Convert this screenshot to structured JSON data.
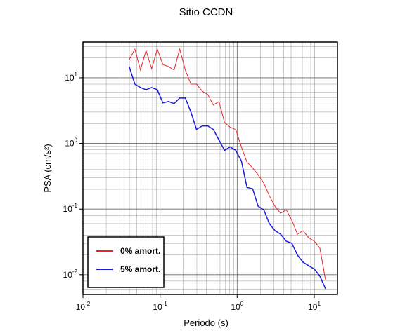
{
  "chart_data": {
    "type": "line",
    "title": "Sitio CCDN",
    "xlabel": "Periodo (s)",
    "ylabel": "PSA (cm/s²)",
    "log_x": true,
    "log_y": true,
    "grid": true,
    "legend": "lower left",
    "x": [
      0.0398,
      0.0471,
      0.0557,
      0.0658,
      0.0778,
      0.092,
      0.1088,
      0.1285,
      0.152,
      0.1797,
      0.2125,
      0.2512,
      0.297,
      0.3511,
      0.4151,
      0.4908,
      0.5802,
      0.686,
      0.811,
      0.959,
      1.134,
      1.34,
      1.585,
      1.874,
      2.215,
      2.619,
      3.097,
      3.661,
      4.329,
      5.118,
      6.051,
      7.154,
      8.458,
      10.0,
      11.82,
      13.98
    ],
    "series": [
      {
        "name": "0% amort.",
        "color": "#e8262a",
        "width": 1,
        "values": [
          18.9,
          27.3,
          13.1,
          26.0,
          13.7,
          27.3,
          15.9,
          14.8,
          13.1,
          27.3,
          13.1,
          8.0,
          8.0,
          6.28,
          5.56,
          3.85,
          4.35,
          2.08,
          1.76,
          1.63,
          0.885,
          0.517,
          0.425,
          0.332,
          0.248,
          0.159,
          0.11,
          0.0863,
          0.0975,
          0.0676,
          0.0414,
          0.0468,
          0.0366,
          0.0324,
          0.0254,
          0.00843
        ]
      },
      {
        "name": "5% amort.",
        "color": "#1a1ae0",
        "width": 1.5,
        "values": [
          14.8,
          8.0,
          7.1,
          6.59,
          7.1,
          6.59,
          4.14,
          4.35,
          4.04,
          4.91,
          4.91,
          3.01,
          1.63,
          1.85,
          1.85,
          1.63,
          1.13,
          0.783,
          0.885,
          0.783,
          0.542,
          0.214,
          0.204,
          0.11,
          0.0975,
          0.0598,
          0.0468,
          0.0414,
          0.0324,
          0.0301,
          0.0199,
          0.0155,
          0.0137,
          0.0122,
          0.00953,
          0.00612
        ]
      }
    ],
    "xlim": [
      0.01,
      20
    ],
    "ylim": [
      0.005,
      35
    ],
    "xticks": [
      {
        "value": 0.01,
        "label": "10^-2"
      },
      {
        "value": 0.1,
        "label": "10^-1"
      },
      {
        "value": 1,
        "label": "10^0"
      },
      {
        "value": 10,
        "label": "10^1"
      }
    ],
    "yticks": [
      {
        "value": 0.01,
        "label": "10^-2"
      },
      {
        "value": 0.1,
        "label": "10^-1"
      },
      {
        "value": 1,
        "label": "10^0"
      },
      {
        "value": 10,
        "label": "10^1"
      }
    ]
  }
}
